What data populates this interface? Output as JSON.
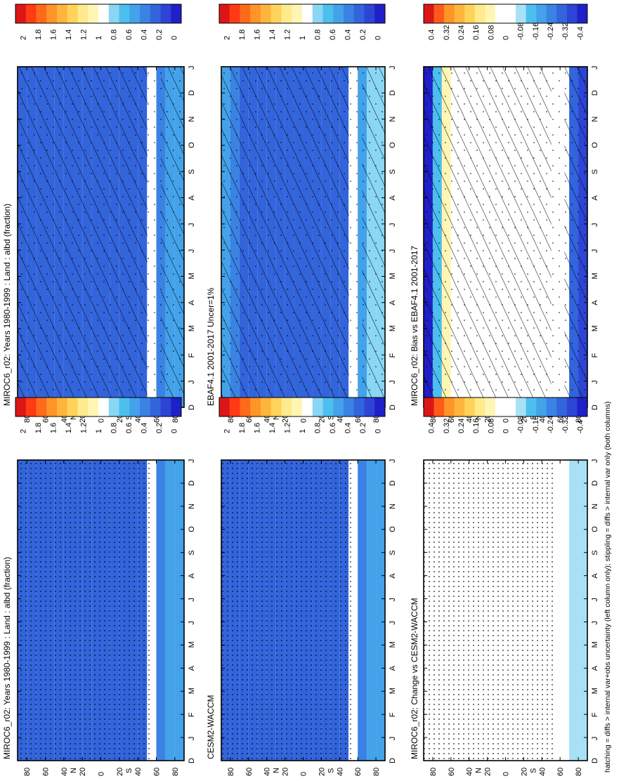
{
  "figure": {
    "footnote": "hatching = diffs > internal var+obs uncertainty (left column only); stippling = diffs > internal var only (both columns)"
  },
  "colors": {
    "abs_palette": [
      "#2020c8",
      "#2e44d4",
      "#3264dc",
      "#3a82e4",
      "#43a2ea",
      "#4cbfef",
      "#8ad6f5",
      "#ffffff",
      "#fff6b4",
      "#ffea8c",
      "#ffd35a",
      "#ffb53c",
      "#ff9428",
      "#ff6a1a",
      "#ff3a14",
      "#dc1616"
    ],
    "diff_palette": [
      "#2020c8",
      "#2e44d4",
      "#3264dc",
      "#3a82e4",
      "#43a2ea",
      "#4cbfef",
      "#a8e0f6",
      "#ffffff",
      "#ffffff",
      "#fff6b4",
      "#ffea8c",
      "#ffd35a",
      "#ffb53c",
      "#ff9428",
      "#ff5a1a",
      "#dc1616"
    ]
  },
  "chart_data": [
    {
      "panel": "left-top",
      "type": "heatmap",
      "title": "MIROC6_r02: Years 1980-1999 : Land : albd (fraction)",
      "x_ticks": [
        "D",
        "J",
        "F",
        "M",
        "A",
        "M",
        "J",
        "J",
        "A",
        "S",
        "O",
        "N",
        "D",
        "J"
      ],
      "y_ticks": [
        "80",
        "60",
        "40",
        "20",
        "0",
        "20",
        "40",
        "60",
        "80"
      ],
      "y_unit_north": "N",
      "y_unit_south": "S",
      "colorbar": {
        "labels": [
          "2",
          "1.8",
          "1.6",
          "1.4",
          "1.2",
          "1",
          "0.8",
          "0.6",
          "0.4",
          "0.2",
          "0"
        ],
        "levels": [
          0,
          0.2,
          0.4,
          0.6,
          0.8,
          1,
          1.2,
          1.4,
          1.6,
          1.8,
          2
        ]
      },
      "latitudes": [
        85,
        75,
        65,
        55,
        45,
        35,
        25,
        15,
        5,
        -5,
        -15,
        -25,
        -35,
        -45,
        -55,
        -65,
        -75,
        -85
      ],
      "values": [
        0.35,
        0.33,
        0.31,
        0.3,
        0.29,
        0.3,
        0.32,
        0.33,
        0.32,
        0.31,
        0.32,
        0.33,
        0.33,
        0.34,
        null,
        0.45,
        0.55,
        0.55
      ],
      "hatching": "most",
      "stippling": "sparse"
    },
    {
      "panel": "right-top",
      "type": "heatmap",
      "title": "MIROC6_r02: Years 1980-1999 : Land : albd (fraction)",
      "x_ticks": [
        "D",
        "J",
        "F",
        "M",
        "A",
        "M",
        "J",
        "J",
        "A",
        "S",
        "O",
        "N",
        "D",
        "J"
      ],
      "y_ticks": [
        "80",
        "60",
        "40",
        "20",
        "0",
        "20",
        "40",
        "60",
        "80"
      ],
      "y_unit_north": "N",
      "y_unit_south": "S",
      "colorbar": {
        "labels": [
          "2",
          "1.8",
          "1.6",
          "1.4",
          "1.2",
          "1",
          "0.8",
          "0.6",
          "0.4",
          "0.2",
          "0"
        ],
        "levels": [
          0,
          0.2,
          0.4,
          0.6,
          0.8,
          1,
          1.2,
          1.4,
          1.6,
          1.8,
          2
        ]
      },
      "latitudes": [
        85,
        75,
        65,
        55,
        45,
        35,
        25,
        15,
        5,
        -5,
        -15,
        -25,
        -35,
        -45,
        -55,
        -65,
        -75,
        -85
      ],
      "values": [
        0.35,
        0.33,
        0.31,
        0.3,
        0.29,
        0.3,
        0.32,
        0.33,
        0.32,
        0.31,
        0.32,
        0.33,
        0.33,
        0.34,
        null,
        0.45,
        0.55,
        0.55
      ],
      "hatching": "none",
      "stippling": "dense"
    },
    {
      "panel": "left-middle",
      "type": "heatmap",
      "title": "EBAF4.1 2001-2017 Uncer=1%",
      "x_ticks": [
        "D",
        "J",
        "F",
        "M",
        "A",
        "M",
        "J",
        "J",
        "A",
        "S",
        "O",
        "N",
        "D",
        "J"
      ],
      "y_ticks": [
        "80",
        "60",
        "40",
        "20",
        "0",
        "20",
        "40",
        "60",
        "80"
      ],
      "y_unit_north": "N",
      "y_unit_south": "S",
      "colorbar": {
        "labels": [
          "2",
          "1.8",
          "1.6",
          "1.4",
          "1.2",
          "1",
          "0.8",
          "0.6",
          "0.4",
          "0.2",
          "0"
        ],
        "levels": [
          0,
          0.2,
          0.4,
          0.6,
          0.8,
          1,
          1.2,
          1.4,
          1.6,
          1.8,
          2
        ]
      },
      "latitudes": [
        85,
        75,
        65,
        55,
        45,
        35,
        25,
        15,
        5,
        -5,
        -15,
        -25,
        -35,
        -45,
        -55,
        -65,
        -75,
        -85
      ],
      "values": [
        0.6,
        0.45,
        0.33,
        0.3,
        0.29,
        0.3,
        0.31,
        0.32,
        0.31,
        0.3,
        0.31,
        0.32,
        0.33,
        0.35,
        null,
        0.5,
        0.75,
        0.85
      ],
      "hatching": "most",
      "stippling": "sparse"
    },
    {
      "panel": "right-middle",
      "type": "heatmap",
      "title": "CESM2-WACCM",
      "x_ticks": [
        "D",
        "J",
        "F",
        "M",
        "A",
        "M",
        "J",
        "J",
        "A",
        "S",
        "O",
        "N",
        "D",
        "J"
      ],
      "y_ticks": [
        "80",
        "60",
        "40",
        "20",
        "0",
        "20",
        "40",
        "60",
        "80"
      ],
      "y_unit_north": "N",
      "y_unit_south": "S",
      "colorbar": {
        "labels": [
          "2",
          "1.8",
          "1.6",
          "1.4",
          "1.2",
          "1",
          "0.8",
          "0.6",
          "0.4",
          "0.2",
          "0"
        ],
        "levels": [
          0,
          0.2,
          0.4,
          0.6,
          0.8,
          1,
          1.2,
          1.4,
          1.6,
          1.8,
          2
        ]
      },
      "latitudes": [
        85,
        75,
        65,
        55,
        45,
        35,
        25,
        15,
        5,
        -5,
        -15,
        -25,
        -35,
        -45,
        -55,
        -65,
        -75,
        -85
      ],
      "values": [
        0.36,
        0.33,
        0.31,
        0.3,
        0.29,
        0.3,
        0.31,
        0.32,
        0.31,
        0.3,
        0.31,
        0.32,
        0.33,
        0.34,
        null,
        0.45,
        0.5,
        0.5
      ],
      "hatching": "none",
      "stippling": "dense"
    },
    {
      "panel": "left-bottom",
      "type": "heatmap",
      "title": "MIROC6_r02: Bias vs EBAF4.1 2001-2017",
      "x_ticks": [
        "D",
        "J",
        "F",
        "M",
        "A",
        "M",
        "J",
        "J",
        "A",
        "S",
        "O",
        "N",
        "D",
        "J"
      ],
      "y_ticks": [
        "80",
        "60",
        "40",
        "20",
        "0",
        "20",
        "40",
        "60",
        "80"
      ],
      "y_unit_north": "N",
      "y_unit_south": "S",
      "colorbar": {
        "labels": [
          "0.4",
          "0.32",
          "0.24",
          "0.16",
          "0.08",
          "0",
          "-0.08",
          "-0.16",
          "-0.24",
          "-0.32",
          "-0.4"
        ],
        "levels": [
          -0.4,
          -0.32,
          -0.24,
          -0.16,
          -0.08,
          0,
          0.08,
          0.16,
          0.24,
          0.32,
          0.4
        ]
      },
      "latitudes": [
        85,
        75,
        65,
        55,
        45,
        35,
        25,
        15,
        5,
        -5,
        -15,
        -25,
        -35,
        -45,
        -55,
        -65,
        -75,
        -85
      ],
      "values": [
        -0.38,
        -0.12,
        0.05,
        0.02,
        0.0,
        0.0,
        0.01,
        0.0,
        0.0,
        0.0,
        0.02,
        0.0,
        0.0,
        0.03,
        null,
        -0.05,
        -0.3,
        -0.35
      ],
      "hatching": "most",
      "stippling": "sparse"
    },
    {
      "panel": "right-bottom",
      "type": "heatmap",
      "title": "MIROC6_r02: Change vs CESM2-WACCM",
      "x_ticks": [
        "D",
        "J",
        "F",
        "M",
        "A",
        "M",
        "J",
        "J",
        "A",
        "S",
        "O",
        "N",
        "D",
        "J"
      ],
      "y_ticks": [
        "80",
        "60",
        "40",
        "20",
        "0",
        "20",
        "40",
        "60",
        "80"
      ],
      "y_unit_north": "N",
      "y_unit_south": "S",
      "colorbar": {
        "labels": [
          "0.4",
          "0.32",
          "0.24",
          "0.16",
          "0.08",
          "0",
          "-0.08",
          "-0.16",
          "-0.24",
          "-0.32",
          "-0.4"
        ],
        "levels": [
          -0.4,
          -0.32,
          -0.24,
          -0.16,
          -0.08,
          0,
          0.08,
          0.16,
          0.24,
          0.32,
          0.4
        ]
      },
      "latitudes": [
        85,
        75,
        65,
        55,
        45,
        35,
        25,
        15,
        5,
        -5,
        -15,
        -25,
        -35,
        -45,
        -55,
        -65,
        -75,
        -85
      ],
      "values": [
        -0.04,
        -0.03,
        0.02,
        0.03,
        0.0,
        0.0,
        0.0,
        0.01,
        0.0,
        0.0,
        0.0,
        0.02,
        0.0,
        0.0,
        null,
        -0.05,
        -0.06,
        -0.06
      ],
      "hatching": "none",
      "stippling": "dense"
    }
  ]
}
